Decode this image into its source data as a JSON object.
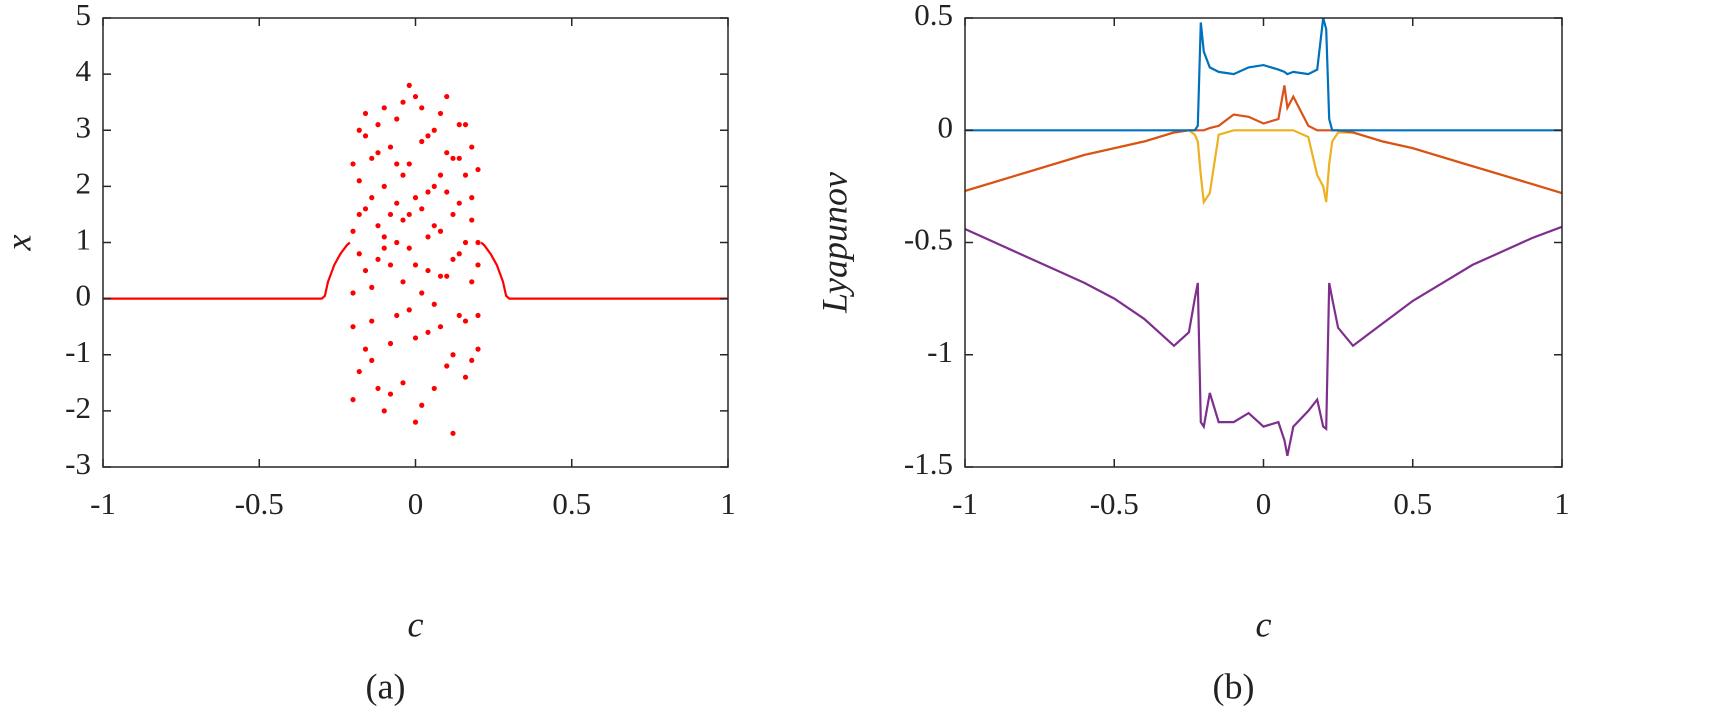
{
  "chart_data": [
    {
      "type": "scatter",
      "xlabel": "c",
      "ylabel": "x",
      "caption": "(a)",
      "xlim": [
        -1,
        1
      ],
      "ylim": [
        -3,
        5
      ],
      "xticks": [
        -1,
        -0.5,
        0,
        0.5,
        1
      ],
      "yticks": [
        -3,
        -2,
        -1,
        0,
        1,
        2,
        3,
        4,
        5
      ],
      "series": [
        {
          "color": "#ff0000",
          "mode": "line",
          "x": [
            -1,
            -0.5,
            -0.3,
            -0.29,
            -0.28,
            -0.26,
            -0.24,
            -0.22,
            -0.21,
            null,
            0.21,
            0.22,
            0.24,
            0.26,
            0.28,
            0.29,
            0.3,
            0.5,
            1
          ],
          "y": [
            0,
            0,
            0,
            0.05,
            0.3,
            0.6,
            0.8,
            0.95,
            1.0,
            null,
            1.0,
            0.95,
            0.8,
            0.6,
            0.3,
            0.05,
            0,
            0,
            0
          ]
        },
        {
          "color": "#ff0000",
          "mode": "points",
          "x": [
            -0.2,
            -0.18,
            -0.16,
            -0.14,
            -0.12,
            -0.1,
            -0.08,
            -0.06,
            -0.04,
            -0.02,
            0,
            0.02,
            0.04,
            0.06,
            0.08,
            0.1,
            0.12,
            0.14,
            0.16,
            0.18,
            0.2,
            -0.2,
            -0.18,
            -0.16,
            -0.14,
            -0.12,
            -0.1,
            -0.08,
            -0.06,
            -0.04,
            -0.02,
            0,
            0.02,
            0.04,
            0.06,
            0.08,
            0.1,
            0.12,
            0.14,
            0.16,
            0.18,
            0.2,
            -0.2,
            -0.18,
            -0.16,
            -0.14,
            -0.12,
            -0.1,
            -0.08,
            -0.06,
            -0.04,
            -0.02,
            0,
            0.02,
            0.04,
            0.06,
            0.08,
            0.1,
            0.12,
            0.14,
            0.16,
            0.18,
            0.2,
            -0.2,
            -0.18,
            -0.16,
            -0.14,
            -0.12,
            -0.1,
            -0.08,
            -0.06,
            -0.04,
            -0.02,
            0,
            0.02,
            0.04,
            0.06,
            0.08,
            0.1,
            0.12,
            0.14,
            0.16,
            0.18,
            0.2,
            -0.2,
            -0.18,
            -0.16,
            -0.14,
            -0.12,
            -0.1,
            -0.08,
            -0.06,
            -0.04,
            -0.02,
            0,
            0.02,
            0.04,
            0.06,
            0.08,
            0.1,
            0.12,
            0.14,
            0.16,
            0.18,
            0.2
          ],
          "y": [
            1.2,
            2.1,
            0.5,
            1.8,
            2.6,
            0.9,
            1.5,
            3.2,
            0.3,
            2.4,
            0.6,
            2.8,
            1.1,
            3.0,
            0.4,
            1.9,
            2.5,
            0.8,
            2.2,
            1.4,
            1.0,
            -0.5,
            0.8,
            2.9,
            -1.1,
            1.3,
            3.4,
            -0.8,
            1.7,
            2.2,
            -0.2,
            3.6,
            0.1,
            -0.6,
            2.0,
            3.3,
            -1.2,
            0.7,
            3.1,
            -0.4,
            2.7,
            -0.9,
            2.4,
            -1.3,
            1.6,
            0.2,
            -1.6,
            2.0,
            0.6,
            -0.3,
            1.4,
            3.8,
            -0.7,
            1.6,
            2.9,
            -0.1,
            1.2,
            0.4,
            -1.0,
            1.7,
            -1.4,
            0.3,
            2.3,
            0.1,
            3.0,
            -0.9,
            2.5,
            0.7,
            -2.0,
            2.7,
            1.0,
            -1.5,
            0.9,
            1.8,
            -1.9,
            0.5,
            1.3,
            -0.5,
            2.6,
            1.5,
            -0.3,
            3.1,
            -1.1,
            0.6,
            -1.8,
            1.5,
            3.3,
            -0.4,
            3.1,
            1.1,
            -1.7,
            2.4,
            3.5,
            1.5,
            -2.2,
            3.4,
            1.9,
            -1.6,
            2.2,
            3.6,
            -2.4,
            2.5,
            1.0,
            1.8,
            -0.3
          ]
        }
      ]
    },
    {
      "type": "line",
      "xlabel": "c",
      "ylabel": "Lyapunov",
      "caption": "(b)",
      "xlim": [
        -1,
        1
      ],
      "ylim": [
        -1.5,
        0.5
      ],
      "xticks": [
        -1,
        -0.5,
        0,
        0.5,
        1
      ],
      "yticks": [
        -1.5,
        -1,
        -0.5,
        0,
        0.5
      ],
      "x": [
        -1,
        -0.9,
        -0.8,
        -0.7,
        -0.6,
        -0.5,
        -0.4,
        -0.3,
        -0.25,
        -0.23,
        -0.22,
        -0.21,
        -0.2,
        -0.18,
        -0.15,
        -0.1,
        -0.05,
        0,
        0.05,
        0.07,
        0.08,
        0.1,
        0.15,
        0.18,
        0.2,
        0.21,
        0.22,
        0.23,
        0.25,
        0.3,
        0.4,
        0.5,
        0.6,
        0.7,
        0.8,
        0.9,
        1
      ],
      "series": [
        {
          "color": "#7e2f8e",
          "values": [
            -0.44,
            -0.5,
            -0.56,
            -0.62,
            -0.68,
            -0.75,
            -0.84,
            -0.96,
            -0.9,
            -0.75,
            -0.68,
            -1.3,
            -1.32,
            -1.17,
            -1.3,
            -1.3,
            -1.26,
            -1.32,
            -1.3,
            -1.38,
            -1.45,
            -1.32,
            -1.25,
            -1.2,
            -1.32,
            -1.33,
            -0.68,
            -0.75,
            -0.88,
            -0.96,
            -0.86,
            -0.76,
            -0.68,
            -0.6,
            -0.54,
            -0.48,
            -0.43
          ]
        },
        {
          "color": "#edb120",
          "values": [
            -0.27,
            -0.23,
            -0.19,
            -0.15,
            -0.11,
            -0.08,
            -0.05,
            -0.01,
            0,
            -0.02,
            -0.05,
            -0.2,
            -0.32,
            -0.28,
            -0.02,
            0,
            0,
            0,
            0,
            0,
            0,
            0,
            -0.03,
            -0.2,
            -0.25,
            -0.32,
            -0.15,
            -0.05,
            -0.01,
            -0.01,
            -0.05,
            -0.08,
            -0.12,
            -0.16,
            -0.2,
            -0.24,
            -0.28
          ]
        },
        {
          "color": "#d95319",
          "values": [
            -0.27,
            -0.23,
            -0.19,
            -0.15,
            -0.11,
            -0.08,
            -0.05,
            -0.01,
            0,
            0,
            0,
            0,
            0,
            0.01,
            0.02,
            0.07,
            0.06,
            0.03,
            0.05,
            0.2,
            0.1,
            0.15,
            0.02,
            0,
            0,
            0,
            0,
            0,
            0,
            -0.01,
            -0.05,
            -0.08,
            -0.12,
            -0.16,
            -0.2,
            -0.24,
            -0.28
          ]
        },
        {
          "color": "#0072bd",
          "values": [
            0,
            0,
            0,
            0,
            0,
            0,
            0,
            0,
            0,
            0,
            0.02,
            0.48,
            0.35,
            0.28,
            0.26,
            0.25,
            0.28,
            0.29,
            0.27,
            0.26,
            0.25,
            0.26,
            0.25,
            0.27,
            0.5,
            0.45,
            0.05,
            0,
            0,
            0,
            0,
            0,
            0,
            0,
            0,
            0,
            0
          ]
        }
      ]
    }
  ]
}
